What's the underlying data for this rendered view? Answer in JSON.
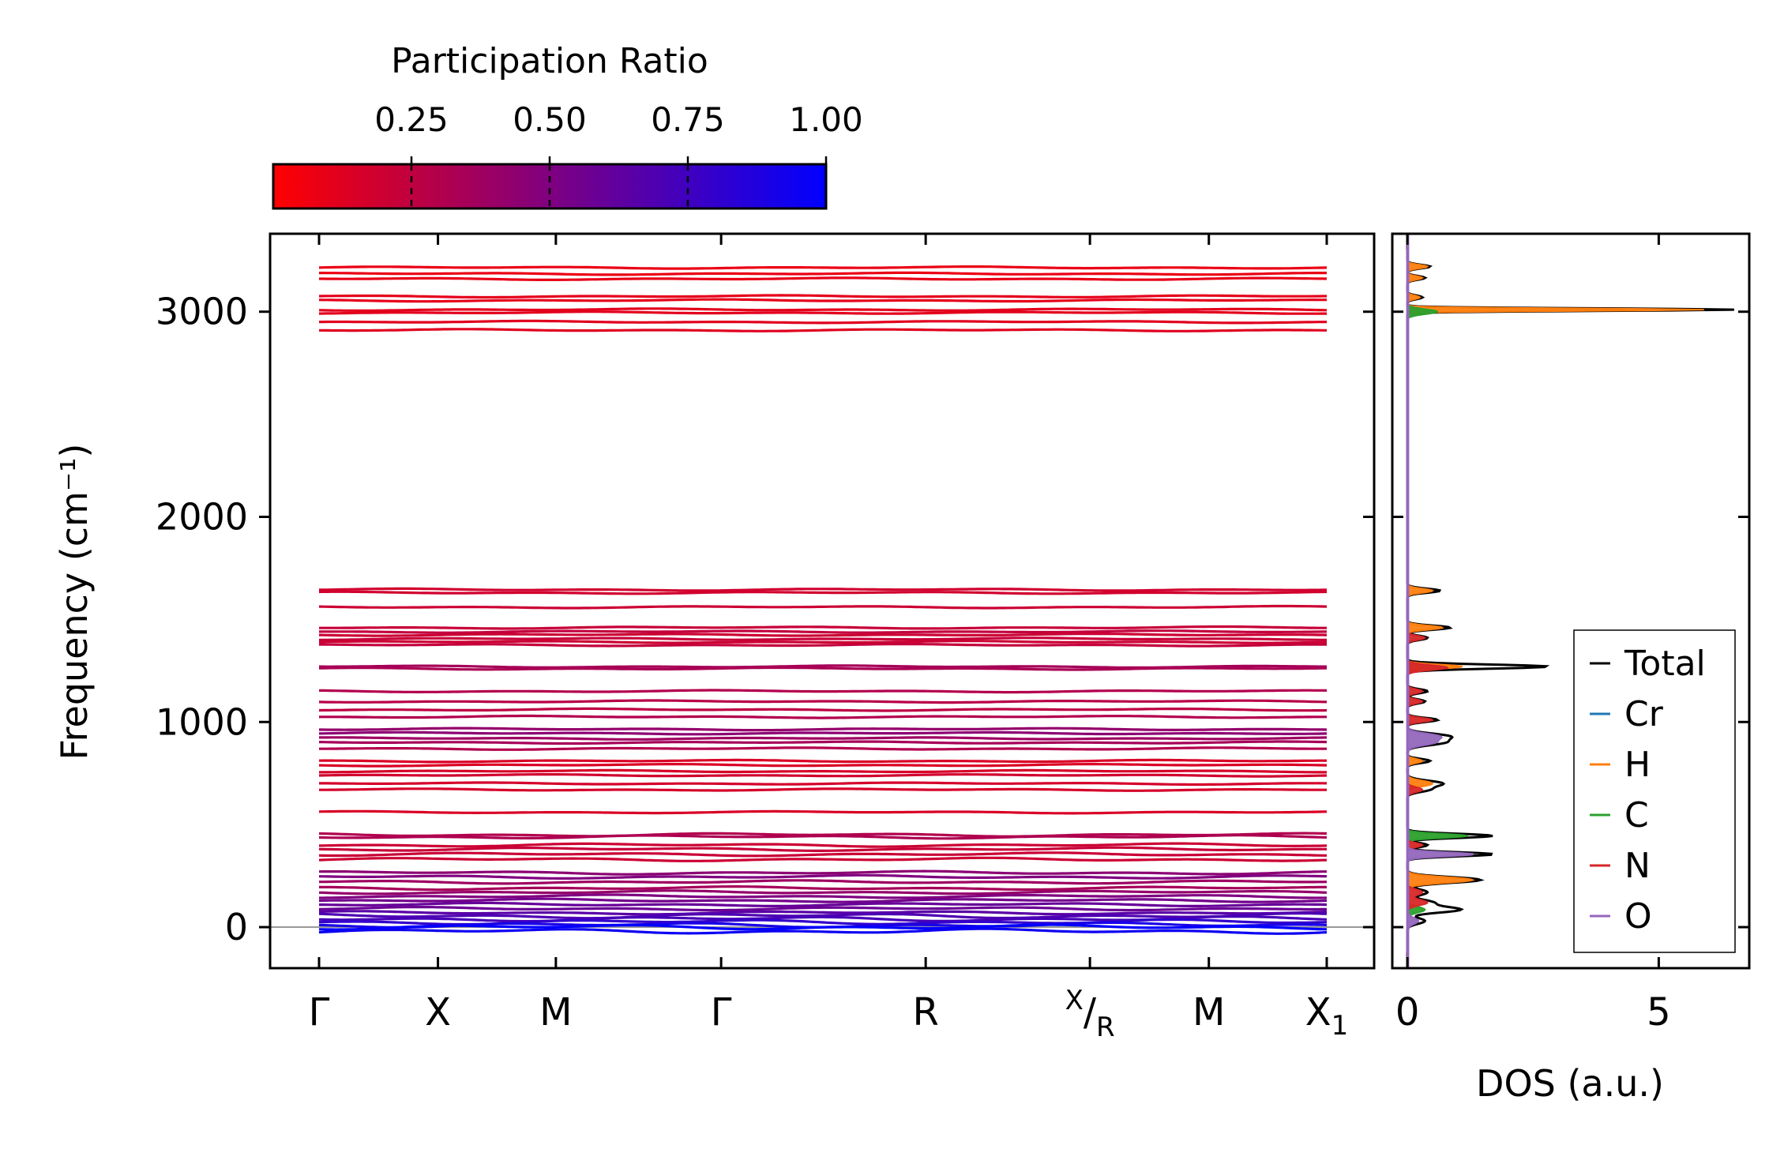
{
  "chart_data": [
    {
      "type": "line",
      "name": "phonon-band-structure",
      "title": "",
      "xlabel": "",
      "ylabel": "Frequency (cm⁻¹)",
      "ylim": [
        -200,
        3380
      ],
      "yticks": [
        0,
        1000,
        2000,
        3000
      ],
      "ytick_labels": [
        "0",
        "1000",
        "2000",
        "3000"
      ],
      "kpath": [
        {
          "label": "Γ",
          "pos": 0.0
        },
        {
          "label": "X",
          "pos": 0.118
        },
        {
          "label": "M",
          "pos": 0.235
        },
        {
          "label": "Γ",
          "pos": 0.399
        },
        {
          "label": "R",
          "pos": 0.602
        },
        {
          "label": "X/R",
          "pos": 0.765
        },
        {
          "label": "M",
          "pos": 0.883
        },
        {
          "label": "X1",
          "pos": 1.0
        }
      ],
      "zero_line": 0,
      "bands": [
        {
          "f": 3215,
          "pr": 0.08
        },
        {
          "f": 3185,
          "pr": 0.08
        },
        {
          "f": 3160,
          "pr": 0.09
        },
        {
          "f": 3075,
          "pr": 0.1
        },
        {
          "f": 3055,
          "pr": 0.1
        },
        {
          "f": 3010,
          "pr": 0.11
        },
        {
          "f": 2995,
          "pr": 0.11
        },
        {
          "f": 2950,
          "pr": 0.12
        },
        {
          "f": 2910,
          "pr": 0.12
        },
        {
          "f": 1645,
          "pr": 0.18
        },
        {
          "f": 1630,
          "pr": 0.18
        },
        {
          "f": 1560,
          "pr": 0.2
        },
        {
          "f": 1460,
          "pr": 0.22
        },
        {
          "f": 1440,
          "pr": 0.24
        },
        {
          "f": 1425,
          "pr": 0.2
        },
        {
          "f": 1405,
          "pr": 0.22
        },
        {
          "f": 1390,
          "pr": 0.2
        },
        {
          "f": 1375,
          "pr": 0.23
        },
        {
          "f": 1270,
          "pr": 0.35
        },
        {
          "f": 1260,
          "pr": 0.33
        },
        {
          "f": 1150,
          "pr": 0.3
        },
        {
          "f": 1100,
          "pr": 0.28
        },
        {
          "f": 1060,
          "pr": 0.26
        },
        {
          "f": 1025,
          "pr": 0.3
        },
        {
          "f": 965,
          "pr": 0.42
        },
        {
          "f": 945,
          "pr": 0.45
        },
        {
          "f": 920,
          "pr": 0.38
        },
        {
          "f": 900,
          "pr": 0.35
        },
        {
          "f": 870,
          "pr": 0.3
        },
        {
          "f": 810,
          "pr": 0.15
        },
        {
          "f": 790,
          "pr": 0.14
        },
        {
          "f": 760,
          "pr": 0.16
        },
        {
          "f": 740,
          "pr": 0.18
        },
        {
          "f": 700,
          "pr": 0.17
        },
        {
          "f": 670,
          "pr": 0.16
        },
        {
          "f": 560,
          "pr": 0.15
        },
        {
          "f": 450,
          "pr": 0.3
        },
        {
          "f": 440,
          "pr": 0.32
        },
        {
          "f": 400,
          "pr": 0.2
        },
        {
          "f": 380,
          "pr": 0.22
        },
        {
          "f": 355,
          "pr": 0.21
        },
        {
          "f": 330,
          "pr": 0.2
        },
        {
          "f": 265,
          "pr": 0.45
        },
        {
          "f": 245,
          "pr": 0.5
        },
        {
          "f": 220,
          "pr": 0.38
        },
        {
          "f": 190,
          "pr": 0.35
        },
        {
          "f": 170,
          "pr": 0.42
        },
        {
          "f": 150,
          "pr": 0.5
        },
        {
          "f": 130,
          "pr": 0.55
        },
        {
          "f": 110,
          "pr": 0.6
        },
        {
          "f": 90,
          "pr": 0.58
        },
        {
          "f": 70,
          "pr": 0.65
        },
        {
          "f": 55,
          "pr": 0.7
        },
        {
          "f": 40,
          "pr": 0.72
        },
        {
          "f": 25,
          "pr": 0.8
        },
        {
          "f": 10,
          "pr": 0.9
        },
        {
          "f": 0,
          "pr": 1.0
        },
        {
          "f": -20,
          "pr": 0.95
        }
      ],
      "colorbar": {
        "label": "Participation Ratio",
        "range": [
          0.0,
          1.0
        ],
        "ticks": [
          0.25,
          0.5,
          0.75,
          1.0
        ],
        "tick_labels": [
          "0.25",
          "0.50",
          "0.75",
          "1.00"
        ],
        "colors": [
          "#ff0000",
          "#0000ff"
        ]
      }
    },
    {
      "type": "area",
      "name": "density-of-states",
      "xlabel": "DOS (a.u.)",
      "ylabel": "",
      "xlim": [
        -0.3,
        6.8
      ],
      "xticks": [
        0,
        5
      ],
      "xtick_labels": [
        "0",
        "5"
      ],
      "ylim": [
        -200,
        3380
      ],
      "legend": {
        "placement": "lower-right",
        "entries": [
          {
            "label": "Total",
            "color": "#000000"
          },
          {
            "label": "Cr",
            "color": "#1f77b4"
          },
          {
            "label": "H",
            "color": "#ff7f0e"
          },
          {
            "label": "C",
            "color": "#2ca02c"
          },
          {
            "label": "N",
            "color": "#d62728"
          },
          {
            "label": "O",
            "color": "#9467bd"
          }
        ]
      },
      "peaks": [
        {
          "series": "H",
          "f": 3220,
          "a": 0.4,
          "w": 9,
          "total": 0.45
        },
        {
          "series": "H",
          "f": 3165,
          "a": 0.3,
          "w": 9,
          "total": 0.35
        },
        {
          "series": "H",
          "f": 3070,
          "a": 0.25,
          "w": 9,
          "total": 0.3
        },
        {
          "series": "H",
          "f": 3010,
          "a": 5.9,
          "w": 6,
          "total": 6.5
        },
        {
          "series": "C",
          "f": 3000,
          "a": 0.6,
          "w": 12,
          "total": 0
        },
        {
          "series": "H",
          "f": 1640,
          "a": 0.5,
          "w": 10,
          "total": 0.65
        },
        {
          "series": "H",
          "f": 1460,
          "a": 0.7,
          "w": 10,
          "total": 0.85
        },
        {
          "series": "N",
          "f": 1410,
          "a": 0.35,
          "w": 10,
          "total": 0.4
        },
        {
          "series": "H",
          "f": 1270,
          "a": 1.1,
          "w": 10,
          "total": 2.8
        },
        {
          "series": "N",
          "f": 1265,
          "a": 0.8,
          "w": 12,
          "total": 0
        },
        {
          "series": "N",
          "f": 1150,
          "a": 0.3,
          "w": 10,
          "total": 0.4
        },
        {
          "series": "N",
          "f": 1100,
          "a": 0.3,
          "w": 10,
          "total": 0.35
        },
        {
          "series": "N",
          "f": 1010,
          "a": 0.5,
          "w": 10,
          "total": 0.6
        },
        {
          "series": "O",
          "f": 930,
          "a": 0.6,
          "w": 14,
          "total": 0.8
        },
        {
          "series": "O",
          "f": 900,
          "a": 0.5,
          "w": 14,
          "total": 0.7
        },
        {
          "series": "H",
          "f": 810,
          "a": 0.3,
          "w": 10,
          "total": 0.45
        },
        {
          "series": "H",
          "f": 700,
          "a": 0.5,
          "w": 14,
          "total": 0.7
        },
        {
          "series": "N",
          "f": 670,
          "a": 0.3,
          "w": 12,
          "total": 0.4
        },
        {
          "series": "C",
          "f": 445,
          "a": 1.2,
          "w": 10,
          "total": 1.7
        },
        {
          "series": "N",
          "f": 400,
          "a": 0.3,
          "w": 10,
          "total": 0.4
        },
        {
          "series": "O",
          "f": 355,
          "a": 1.3,
          "w": 10,
          "total": 1.7
        },
        {
          "series": "H",
          "f": 230,
          "a": 1.3,
          "w": 14,
          "total": 1.45
        },
        {
          "series": "N",
          "f": 170,
          "a": 0.3,
          "w": 14,
          "total": 0.4
        },
        {
          "series": "N",
          "f": 120,
          "a": 0.4,
          "w": 14,
          "total": 0.5
        },
        {
          "series": "C",
          "f": 85,
          "a": 0.35,
          "w": 14,
          "total": 1.05
        },
        {
          "series": "O",
          "f": 30,
          "a": 0.2,
          "w": 14,
          "total": 0.35
        }
      ]
    }
  ]
}
